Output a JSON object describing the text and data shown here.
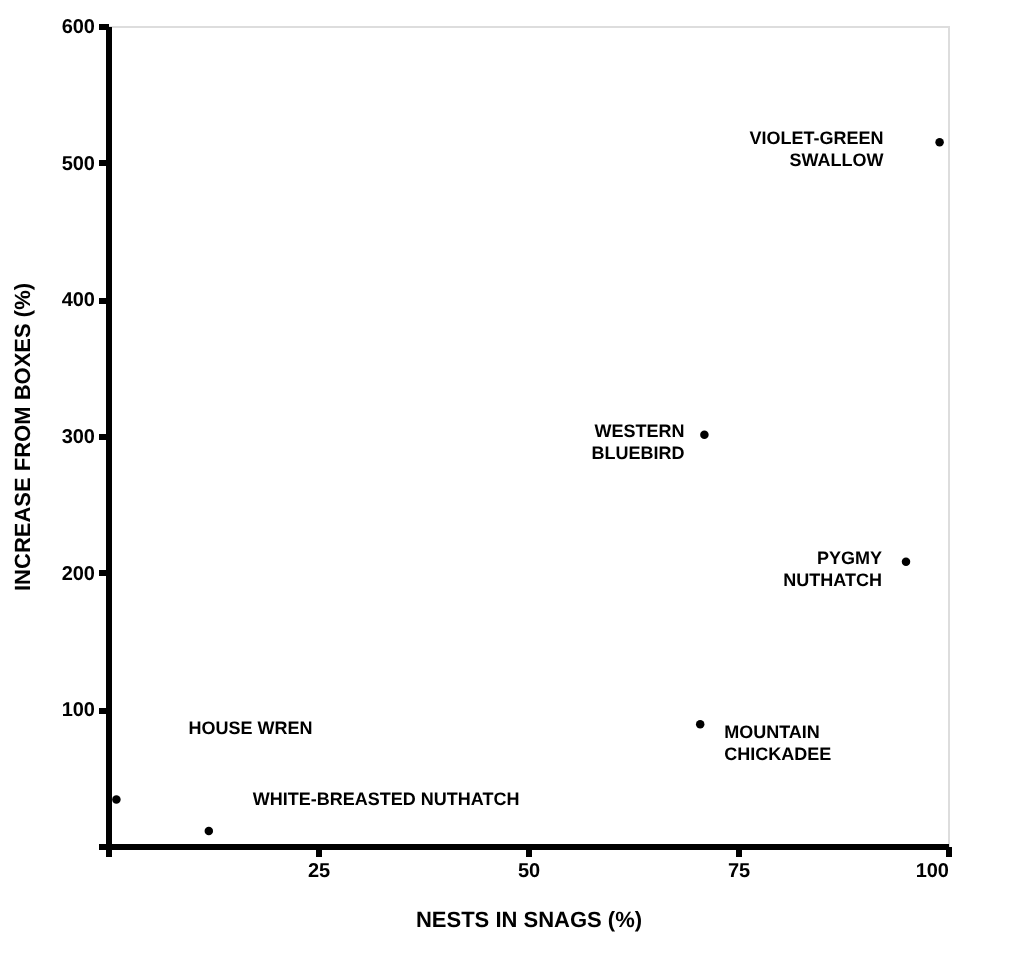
{
  "chart_data": {
    "type": "scatter",
    "xlabel": "NESTS IN SNAGS (%)",
    "ylabel": "INCREASE FROM BOXES (%)",
    "x": [
      99,
      71,
      95,
      70.5,
      1,
      12
    ],
    "series": [
      {
        "color": "#000000",
        "values": [
          515,
          301,
          208,
          89,
          34,
          11
        ]
      }
    ],
    "xlim": [
      0,
      100
    ],
    "ylim": [
      0,
      600
    ],
    "xticks": [
      {
        "value": 0,
        "label": null
      },
      25,
      50,
      75,
      100
    ],
    "yticks": [
      {
        "value": 0,
        "label": null
      },
      100,
      200,
      300,
      400,
      500,
      600
    ],
    "marker": "circle",
    "grid": false,
    "annotations": [
      "VIOLET-GREEN\nSWALLOW",
      "WESTERN\nBLUEBIRD",
      "PYGMY\nNUTHATCH",
      "MOUNTAIN\nCHICKADEE",
      "HOUSE WREN",
      "WHITE-BREASTED NUTHATCH"
    ]
  }
}
